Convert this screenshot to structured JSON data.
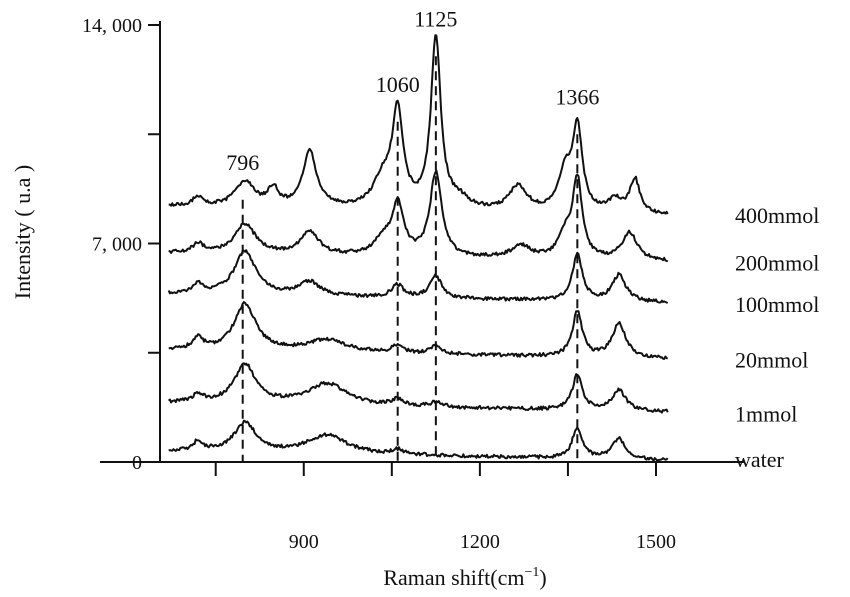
{
  "chart_data": {
    "type": "line",
    "title": "",
    "xlabel": "Raman shift(cm",
    "xlabel_sup": "−1",
    "xlabel_close": ")",
    "ylabel": "Intensity ( u.a )",
    "xlim": [
      660,
      1530
    ],
    "ylim": [
      0,
      14000
    ],
    "x_ticks": [
      750,
      900,
      1050,
      1200,
      1350,
      1500
    ],
    "x_tick_labels": [
      "",
      "900",
      "",
      "1200",
      "",
      "1500"
    ],
    "y_ticks": [
      0,
      3500,
      7000,
      10500,
      14000
    ],
    "y_tick_labels": [
      "0",
      "",
      "7, 000",
      "",
      "14, 000"
    ],
    "peaks": [
      {
        "x": 796,
        "label": "796",
        "top": 9100
      },
      {
        "x": 1060,
        "label": "1060",
        "top": 11600
      },
      {
        "x": 1125,
        "label": "1125",
        "top": 13700
      },
      {
        "x": 1366,
        "label": "1366",
        "top": 11200
      }
    ],
    "series": [
      {
        "name": "water",
        "baseline": 350,
        "peaks": [
          [
            720,
            300,
            10
          ],
          [
            800,
            950,
            22
          ],
          [
            940,
            600,
            40
          ],
          [
            1060,
            150,
            12
          ],
          [
            1366,
            1000,
            10
          ],
          [
            1437,
            650,
            14
          ]
        ]
      },
      {
        "name": "1mmol",
        "baseline": 1900,
        "peaks": [
          [
            720,
            250,
            10
          ],
          [
            800,
            1250,
            22
          ],
          [
            940,
            700,
            40
          ],
          [
            1060,
            200,
            12
          ],
          [
            1125,
            150,
            12
          ],
          [
            1366,
            1150,
            10
          ],
          [
            1437,
            650,
            14
          ]
        ]
      },
      {
        "name": "20mmol",
        "baseline": 3600,
        "peaks": [
          [
            720,
            350,
            10
          ],
          [
            800,
            1500,
            22
          ],
          [
            940,
            400,
            40
          ],
          [
            1060,
            250,
            12
          ],
          [
            1125,
            250,
            12
          ],
          [
            1366,
            1450,
            10
          ],
          [
            1437,
            1100,
            14
          ]
        ]
      },
      {
        "name": "100mmol",
        "baseline": 5400,
        "peaks": [
          [
            720,
            300,
            10
          ],
          [
            800,
            1400,
            22
          ],
          [
            910,
            450,
            20
          ],
          [
            1060,
            400,
            12
          ],
          [
            1125,
            700,
            12
          ],
          [
            1366,
            1500,
            10
          ],
          [
            1437,
            850,
            14
          ]
        ]
      },
      {
        "name": "200mmol",
        "baseline": 6700,
        "peaks": [
          [
            720,
            300,
            10
          ],
          [
            800,
            950,
            22
          ],
          [
            910,
            750,
            18
          ],
          [
            1035,
            500,
            18
          ],
          [
            1060,
            1600,
            12
          ],
          [
            1125,
            2700,
            12
          ],
          [
            1270,
            400,
            20
          ],
          [
            1345,
            700,
            14
          ],
          [
            1366,
            2500,
            10
          ],
          [
            1455,
            900,
            16
          ]
        ]
      },
      {
        "name": "400mmol",
        "baseline": 8200,
        "peaks": [
          [
            720,
            300,
            10
          ],
          [
            800,
            800,
            20
          ],
          [
            848,
            550,
            10
          ],
          [
            910,
            1800,
            14
          ],
          [
            1035,
            900,
            20
          ],
          [
            1060,
            3000,
            11
          ],
          [
            1125,
            5500,
            10
          ],
          [
            1165,
            300,
            20
          ],
          [
            1265,
            800,
            18
          ],
          [
            1345,
            1200,
            14
          ],
          [
            1366,
            2600,
            10
          ],
          [
            1430,
            400,
            14
          ],
          [
            1464,
            1100,
            10
          ]
        ]
      }
    ]
  }
}
